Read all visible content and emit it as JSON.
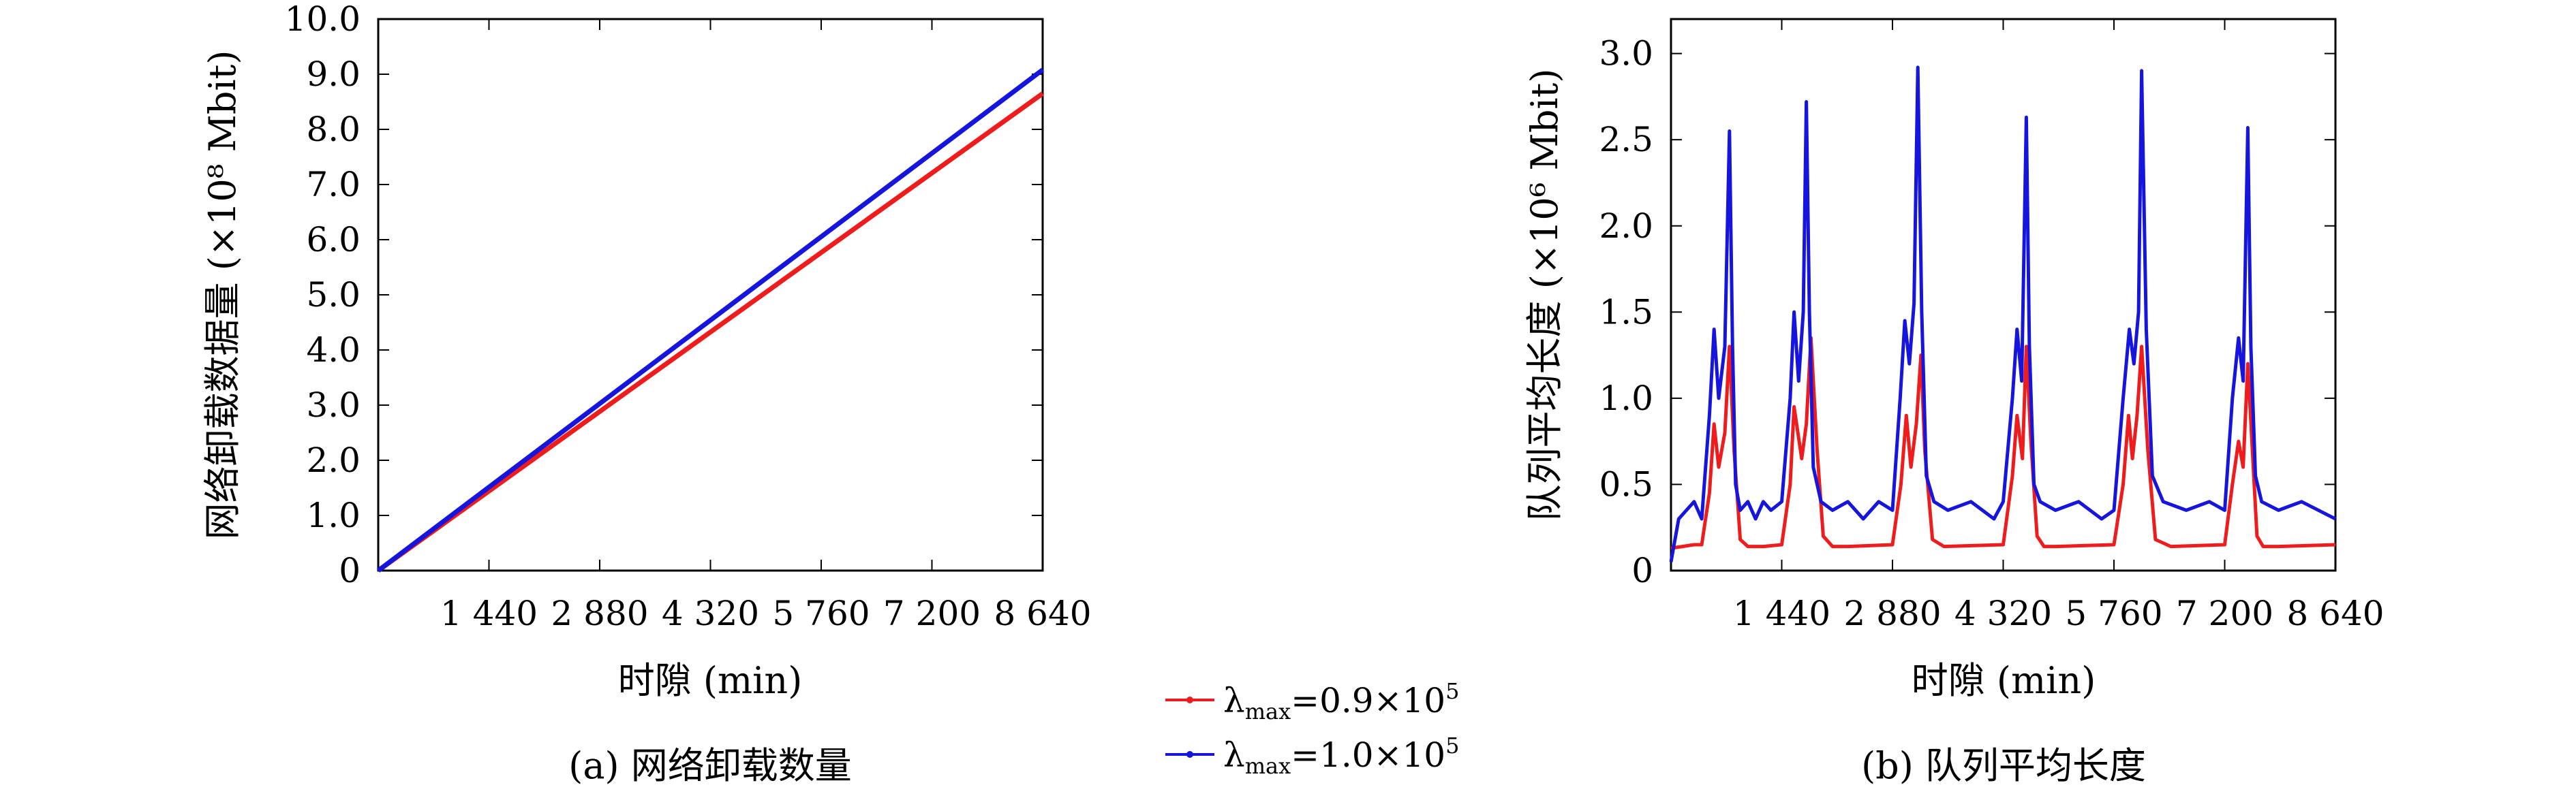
{
  "chart_data": [
    {
      "type": "line",
      "caption": "(a) 网络卸载数量",
      "xlabel": "时隙 (min)",
      "ylabel": "网络卸载数据量 (×10⁸ Mbit)",
      "xlim": [
        0,
        8640
      ],
      "ylim": [
        0,
        10
      ],
      "x_ticks": [
        1440,
        2880,
        4320,
        5760,
        7200,
        8640
      ],
      "x_tick_labels": [
        "1 440",
        "2 880",
        "4 320",
        "5 760",
        "7 200",
        "8 640"
      ],
      "y_ticks": [
        0,
        1,
        2,
        3,
        4,
        5,
        6,
        7,
        8,
        9,
        10
      ],
      "y_tick_labels": [
        "0",
        "1.0",
        "2.0",
        "3.0",
        "4.0",
        "5.0",
        "6.0",
        "7.0",
        "8.0",
        "9.0",
        "10.0"
      ],
      "grid": false,
      "series": [
        {
          "name": "λmax=0.9×10⁵",
          "color": "#ee1c1c",
          "x": [
            0,
            8640
          ],
          "y": [
            0,
            8.65
          ]
        },
        {
          "name": "λmax=1.0×10⁵",
          "color": "#1515dd",
          "x": [
            0,
            8640
          ],
          "y": [
            0,
            9.08
          ]
        }
      ]
    },
    {
      "type": "line",
      "caption": "(b) 队列平均长度",
      "xlabel": "时隙 (min)",
      "ylabel": "队列平均长度 (×10⁶ Mbit)",
      "xlim": [
        0,
        8640
      ],
      "ylim": [
        0,
        3.2
      ],
      "x_ticks": [
        1440,
        2880,
        4320,
        5760,
        7200,
        8640
      ],
      "x_tick_labels": [
        "1 440",
        "2 880",
        "4 320",
        "5 760",
        "7 200",
        "8 640"
      ],
      "y_ticks": [
        0,
        0.5,
        1.0,
        1.5,
        2.0,
        2.5,
        3.0
      ],
      "y_tick_labels": [
        "0",
        "0.5",
        "1.0",
        "1.5",
        "2.0",
        "2.5",
        "3.0"
      ],
      "grid": false,
      "series": [
        {
          "name": "λmax=0.9×10⁵",
          "color": "#ee1c1c",
          "x": [
            0,
            150,
            300,
            400,
            500,
            560,
            620,
            700,
            760,
            820,
            900,
            1000,
            1200,
            1440,
            1550,
            1600,
            1700,
            1760,
            1820,
            1900,
            1980,
            2100,
            2300,
            2880,
            2990,
            3060,
            3120,
            3190,
            3250,
            3300,
            3400,
            3550,
            4320,
            4440,
            4500,
            4570,
            4620,
            4680,
            4760,
            4850,
            5000,
            5760,
            5880,
            5950,
            6000,
            6060,
            6120,
            6200,
            6300,
            6500,
            7200,
            7300,
            7380,
            7440,
            7500,
            7560,
            7620,
            7700,
            7900,
            8640
          ],
          "y": [
            0.13,
            0.14,
            0.15,
            0.15,
            0.45,
            0.85,
            0.6,
            0.8,
            1.3,
            0.7,
            0.18,
            0.14,
            0.14,
            0.15,
            0.5,
            0.95,
            0.65,
            0.85,
            1.35,
            0.7,
            0.2,
            0.14,
            0.14,
            0.15,
            0.5,
            0.9,
            0.6,
            0.85,
            1.25,
            0.7,
            0.18,
            0.14,
            0.15,
            0.55,
            0.9,
            0.65,
            1.3,
            0.75,
            0.2,
            0.14,
            0.14,
            0.15,
            0.5,
            0.9,
            0.65,
            0.9,
            1.3,
            0.7,
            0.18,
            0.14,
            0.15,
            0.5,
            0.75,
            0.6,
            1.2,
            0.7,
            0.2,
            0.14,
            0.14,
            0.15
          ]
        },
        {
          "name": "λmax=1.0×10⁵",
          "color": "#1515dd",
          "x": [
            0,
            100,
            200,
            300,
            400,
            500,
            560,
            620,
            700,
            760,
            800,
            840,
            900,
            1000,
            1100,
            1200,
            1300,
            1440,
            1550,
            1600,
            1660,
            1720,
            1760,
            1800,
            1850,
            1950,
            2100,
            2300,
            2500,
            2700,
            2880,
            2980,
            3040,
            3100,
            3160,
            3210,
            3260,
            3320,
            3420,
            3600,
            3900,
            4200,
            4320,
            4440,
            4500,
            4560,
            4620,
            4660,
            4720,
            4800,
            5000,
            5300,
            5600,
            5760,
            5880,
            5960,
            6020,
            6080,
            6120,
            6180,
            6260,
            6400,
            6700,
            7000,
            7200,
            7300,
            7380,
            7440,
            7500,
            7540,
            7600,
            7680,
            7900,
            8200,
            8640
          ],
          "y": [
            0.05,
            0.3,
            0.35,
            0.4,
            0.3,
            0.9,
            1.4,
            1.0,
            1.3,
            2.55,
            1.3,
            0.5,
            0.35,
            0.4,
            0.3,
            0.4,
            0.35,
            0.4,
            1.0,
            1.5,
            1.1,
            1.5,
            2.72,
            1.5,
            0.6,
            0.4,
            0.35,
            0.4,
            0.3,
            0.4,
            0.35,
            1.0,
            1.45,
            1.2,
            1.55,
            2.92,
            1.5,
            0.55,
            0.4,
            0.35,
            0.4,
            0.3,
            0.4,
            1.0,
            1.4,
            1.1,
            2.63,
            1.3,
            0.5,
            0.4,
            0.35,
            0.4,
            0.3,
            0.35,
            1.0,
            1.4,
            1.2,
            1.5,
            2.9,
            1.4,
            0.55,
            0.4,
            0.35,
            0.4,
            0.35,
            1.0,
            1.35,
            1.1,
            2.57,
            1.3,
            0.55,
            0.4,
            0.35,
            0.4,
            0.3
          ]
        }
      ]
    }
  ],
  "legend": {
    "items": [
      {
        "sym": "λ",
        "sub": "max",
        "rest": "=0.9×10",
        "exp": "5",
        "color": "#ee1c1c"
      },
      {
        "sym": "λ",
        "sub": "max",
        "rest": "=1.0×10",
        "exp": "5",
        "color": "#1515dd"
      }
    ]
  }
}
